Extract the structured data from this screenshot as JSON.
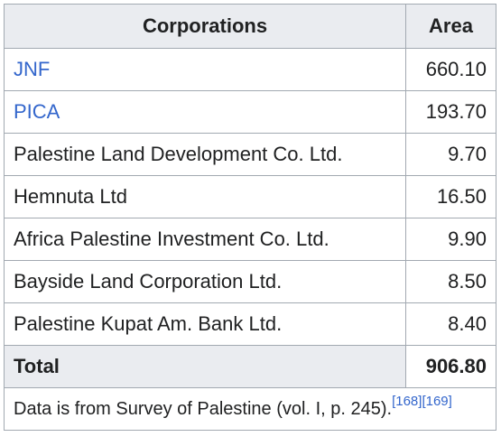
{
  "table": {
    "headers": {
      "corporations": "Corporations",
      "area": "Area"
    },
    "rows": [
      {
        "name": "JNF",
        "area": "660.10",
        "link": true
      },
      {
        "name": "PICA",
        "area": "193.70",
        "link": true
      },
      {
        "name": "Palestine Land Development Co. Ltd.",
        "area": "9.70",
        "link": false
      },
      {
        "name": "Hemnuta Ltd",
        "area": "16.50",
        "link": false
      },
      {
        "name": "Africa Palestine Investment Co. Ltd.",
        "area": "9.90",
        "link": false
      },
      {
        "name": "Bayside Land Corporation Ltd.",
        "area": "8.50",
        "link": false
      },
      {
        "name": "Palestine Kupat Am. Bank Ltd.",
        "area": "8.40",
        "link": false
      }
    ],
    "total": {
      "label": "Total",
      "value": "906.80"
    },
    "footnote": {
      "text": "Data is from Survey of Palestine (vol. I, p. 245).",
      "refs": [
        "[168]",
        "[169]"
      ]
    }
  },
  "colors": {
    "link": "#3366cc",
    "header_bg": "#eaecf0",
    "border": "#a2a9b1",
    "text": "#202122"
  }
}
